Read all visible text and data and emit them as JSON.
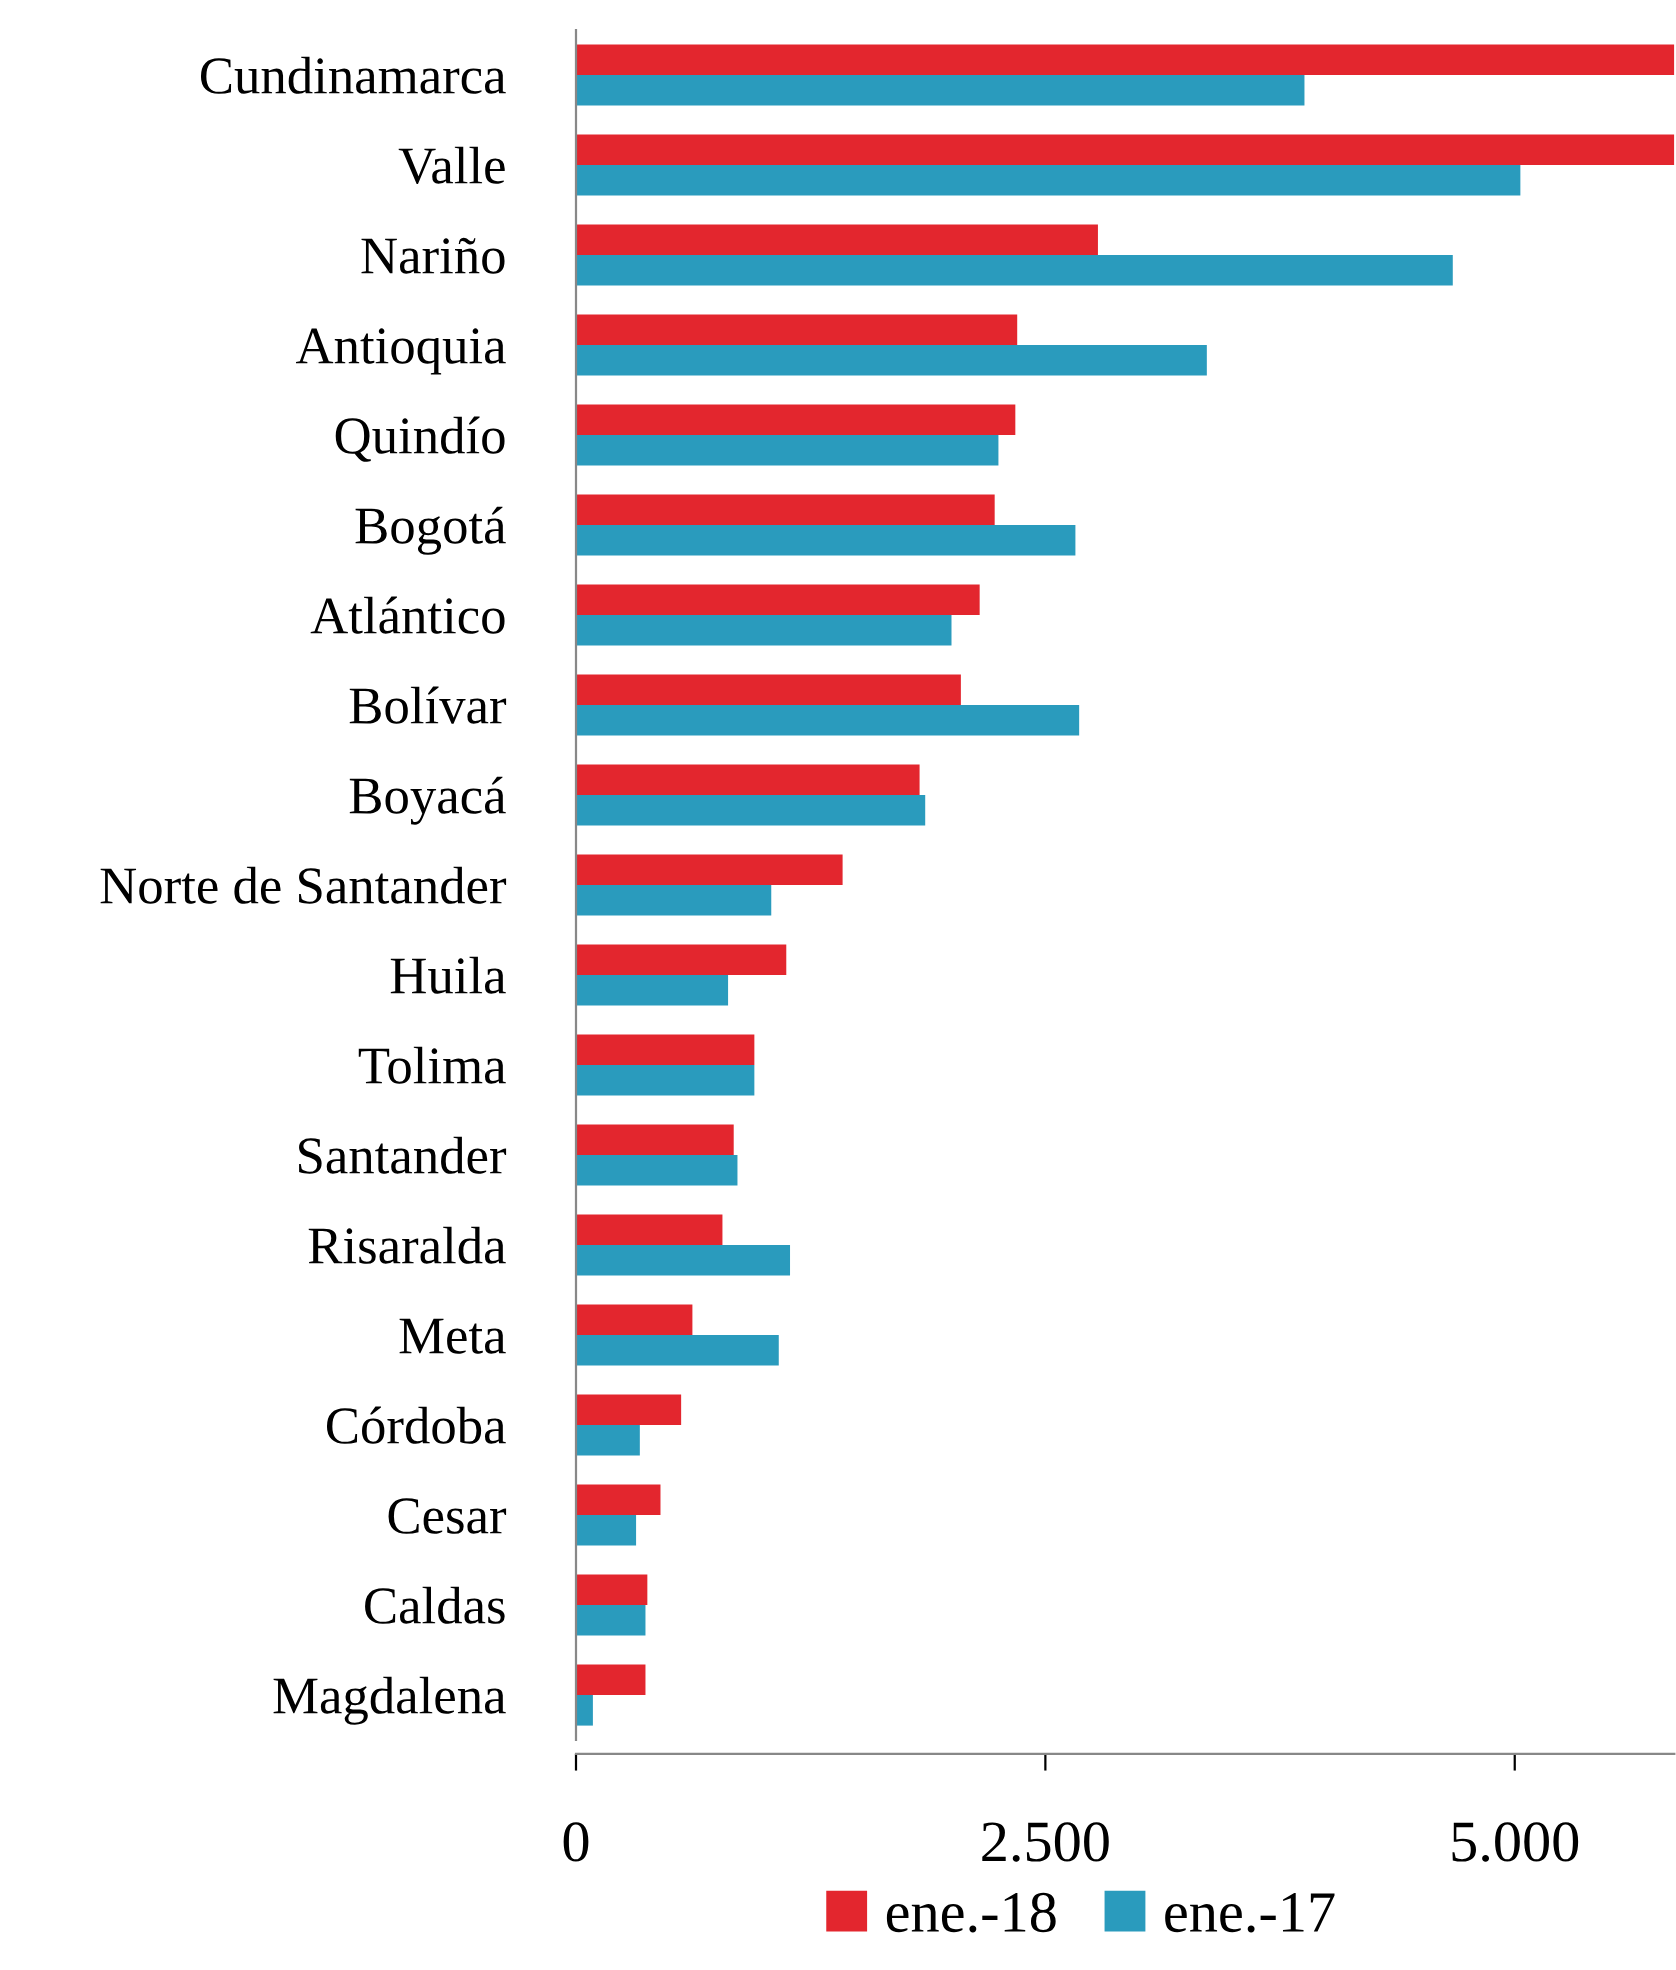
{
  "chart_data": {
    "type": "bar",
    "orientation": "horizontal",
    "categories": [
      "Cundinamarca",
      "Valle",
      "Nariño",
      "Antioquia",
      "Quindío",
      "Bogotá",
      "Atlántico",
      "Bolívar",
      "Boyacá",
      "Norte de Santander",
      "Huila",
      "Tolima",
      "Santander",
      "Risaralda",
      "Meta",
      "Córdoba",
      "Cesar",
      "Caldas",
      "Magdalena"
    ],
    "series": [
      {
        "name": "ene.-18",
        "color": "#e3262e",
        "values": [
          5850,
          5850,
          2780,
          2350,
          2340,
          2230,
          2150,
          2050,
          1830,
          1420,
          1120,
          950,
          840,
          780,
          620,
          560,
          450,
          380,
          370
        ]
      },
      {
        "name": "ene.-17",
        "color": "#2a9bbd",
        "values": [
          3880,
          5030,
          4670,
          3360,
          2250,
          2660,
          2000,
          2680,
          1860,
          1040,
          810,
          950,
          860,
          1140,
          1080,
          340,
          320,
          370,
          90
        ]
      }
    ],
    "xlim": [
      0,
      5850
    ],
    "xticks": [
      {
        "value": 0,
        "label": "0"
      },
      {
        "value": 2500,
        "label": "2.500"
      },
      {
        "value": 5000,
        "label": "5.000"
      }
    ],
    "grid": false,
    "legend": "bottom"
  }
}
